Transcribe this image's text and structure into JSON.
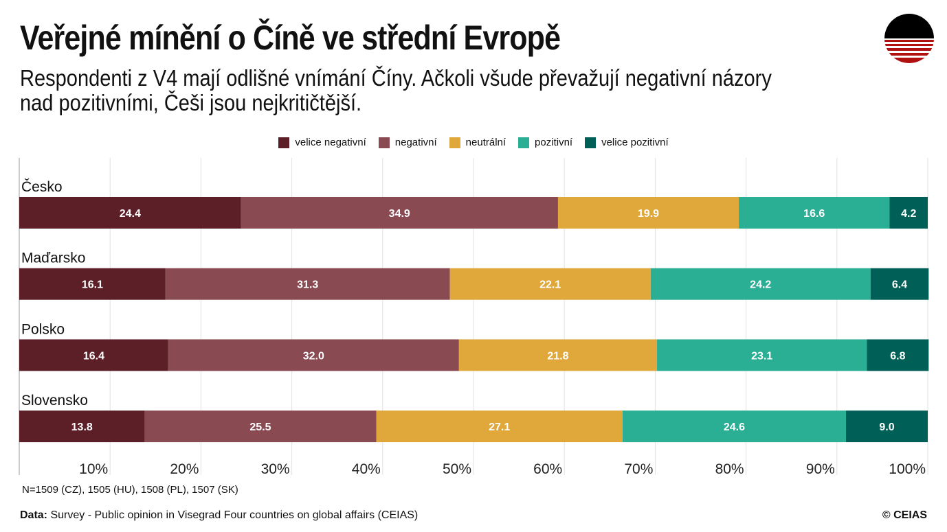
{
  "title": "Veřejné mínění o Číně ve střední Evropě",
  "subtitle": "Respondenti z V4 mají odlišné vnímání Číny. Ačkoli všude převažují negativní názory nad pozitivními, Češi jsou nejkritičtější.",
  "note": "N=1509 (CZ), 1505 (HU), 1508 (PL), 1507 (SK)",
  "source_label": "Data:",
  "source_text": " Survey - Public opinion in Visegrad Four countries on global affairs (CEIAS)",
  "copyright": "© CEIAS",
  "logo_text": "CEIAS",
  "chart_data": {
    "type": "bar",
    "orientation": "horizontal",
    "stacked": true,
    "categories": [
      "Česko",
      "Maďarsko",
      "Polsko",
      "Slovensko"
    ],
    "series": [
      {
        "name": "velice negativní",
        "color": "#5c1f28",
        "values": [
          24.4,
          16.1,
          16.4,
          13.8
        ]
      },
      {
        "name": "negativní",
        "color": "#8a4a52",
        "values": [
          34.9,
          31.3,
          32.0,
          25.5
        ]
      },
      {
        "name": "neutrální",
        "color": "#e0a83a",
        "values": [
          19.9,
          22.1,
          21.8,
          27.1
        ]
      },
      {
        "name": "pozitivní",
        "color": "#2aae94",
        "values": [
          16.6,
          24.2,
          23.1,
          24.6
        ]
      },
      {
        "name": "velice pozitivní",
        "color": "#006058",
        "values": [
          4.2,
          6.4,
          6.8,
          9.0
        ]
      }
    ],
    "xlim": [
      0,
      100
    ],
    "xticks": [
      "10%",
      "20%",
      "30%",
      "40%",
      "50%",
      "60%",
      "70%",
      "80%",
      "90%",
      "100%"
    ],
    "grid": true,
    "legend_position": "top"
  }
}
